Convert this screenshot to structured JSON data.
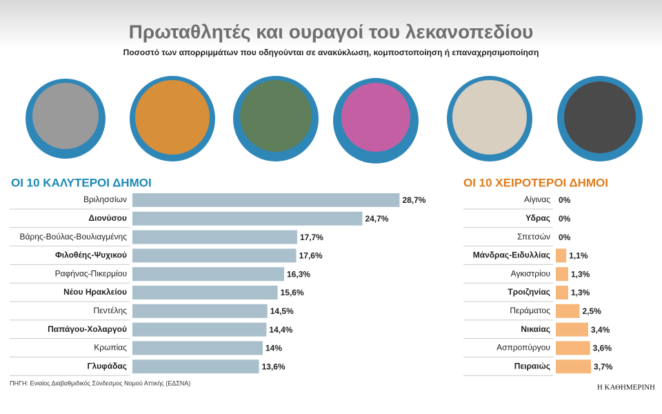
{
  "header": {
    "title": "Πρωταθλητές και ουραγοί του λεκανοπεδίου",
    "subtitle": "Ποσοστό των απορριμμάτων που οδηγούνται σε ανακύκλωση, κομποστοποίηση ή επαναχρησιμοποίηση"
  },
  "source": "ΠΗΓΗ: Ενιαίος Διαβαθμιδικός Σύνδεσμος Νομού Αττικής (ΕΔΣΝΑ)",
  "brand": "Η ΚΑΘΗΜΕΡΙΝΗ",
  "chart_data": [
    {
      "type": "bar",
      "orientation": "horizontal",
      "title": "ΟΙ 10 ΚΑΛΥΤΕΡΟΙ ΔΗΜΟΙ",
      "title_color": "#1b8ab5",
      "color": "#a9c0cc",
      "categories": [
        "Βριλησσίων",
        "Διονύσου",
        "Βάρης-Βούλας-Βουλιαγμένης",
        "Φιλοθέης-Ψυχικού",
        "Ραφήνας-Πικερμίου",
        "Νέου Ηρακλείου",
        "Πεντέλης",
        "Παπάγου-Χολαργού",
        "Κρωπίας",
        "Γλυφάδας"
      ],
      "values": [
        28.7,
        24.7,
        17.7,
        17.6,
        16.3,
        15.6,
        14.5,
        14.4,
        14,
        13.6
      ],
      "value_labels": [
        "28,7%",
        "24,7%",
        "17,7%",
        "17,6%",
        "16,3%",
        "15,6%",
        "14,5%",
        "14,4%",
        "14%",
        "13,6%"
      ],
      "xlim": [
        0,
        30
      ]
    },
    {
      "type": "bar",
      "orientation": "horizontal",
      "title": "ΟΙ 10 ΧΕΙΡΟΤΕΡΟΙ ΔΗΜΟΙ",
      "title_color": "#e07b1a",
      "color": "#f7b77a",
      "categories": [
        "Αίγινας",
        "Υδρας",
        "Σπετσών",
        "Μάνδρας-Ειδυλλίας",
        "Αγκιστρίου",
        "Τροιζηνίας",
        "Περάματος",
        "Νικαίας",
        "Ασπροπύργου",
        "Πειραιώς"
      ],
      "values": [
        0,
        0,
        0,
        1.1,
        1.3,
        1.3,
        2.5,
        3.4,
        3.6,
        3.7
      ],
      "value_labels": [
        "0%",
        "0%",
        "0%",
        "1,1%",
        "1,3%",
        "1,3%",
        "2,5%",
        "3,4%",
        "3,6%",
        "3,7%"
      ],
      "xlim": [
        0,
        10
      ]
    }
  ]
}
